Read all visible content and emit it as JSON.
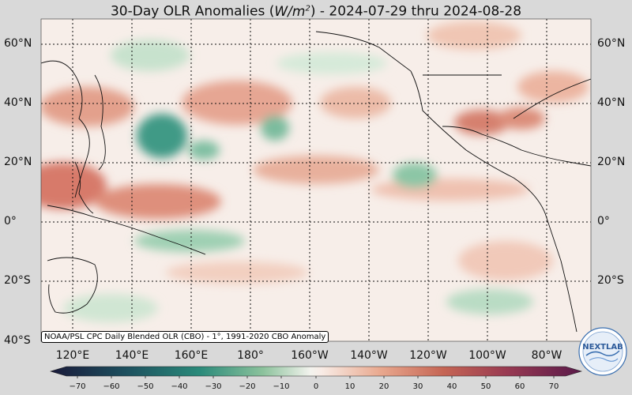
{
  "title": {
    "prefix": "30-Day OLR Anomalies (",
    "unit_base": "W/m",
    "unit_exp": "2",
    "suffix": ") - 2024-07-29 thru 2024-08-28"
  },
  "map": {
    "lat_labels": [
      "60°N",
      "40°N",
      "20°N",
      "0°",
      "20°S",
      "40°S"
    ],
    "lon_labels": [
      "120°E",
      "140°E",
      "160°E",
      "180°",
      "160°W",
      "140°W",
      "120°W",
      "100°W",
      "80°W"
    ],
    "credit": "NOAA/PSL CPC Daily Blended OLR (CBO) - 1°, 1991-2020 CBO Anomaly"
  },
  "colorbar": {
    "ticks": [
      "−70",
      "−60",
      "−50",
      "−40",
      "−30",
      "−20",
      "−10",
      "0",
      "10",
      "20",
      "30",
      "40",
      "50",
      "60",
      "70"
    ],
    "neg_color": "#1f6f68",
    "pos_color": "#c0574a",
    "min_color": "#1a1a3a",
    "max_color": "#5a1a4a"
  },
  "logo": {
    "name": "noaa-psl-nextlab-logo",
    "text": "NEXTLAB"
  }
}
